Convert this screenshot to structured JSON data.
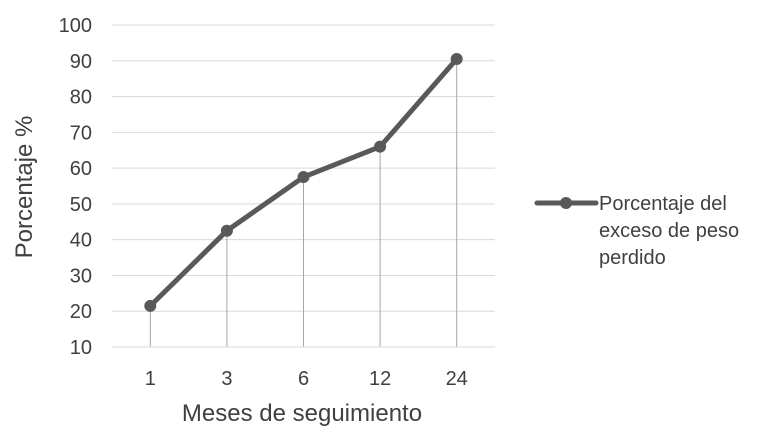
{
  "chart_data": {
    "type": "line",
    "title": "",
    "xlabel": "Meses de seguimiento",
    "ylabel": "Porcentaje %",
    "categories": [
      "1",
      "3",
      "6",
      "12",
      "24"
    ],
    "series": [
      {
        "name": "Porcentaje del exceso de peso perdido",
        "legend_lines": [
          "Porcentaje del",
          "exceso de peso",
          "perdido"
        ],
        "values": [
          21.5,
          42.5,
          57.5,
          66,
          90.5
        ],
        "color": "#595959"
      }
    ],
    "ylim": [
      10,
      100
    ],
    "yticks": [
      10,
      20,
      30,
      40,
      50,
      60,
      70,
      80,
      90,
      100
    ],
    "grid": true,
    "drop_lines": true,
    "legend_position": "right",
    "colors": {
      "grid": "#d9d9d9",
      "drop_line": "#a6a6a6",
      "text": "#404040"
    }
  }
}
